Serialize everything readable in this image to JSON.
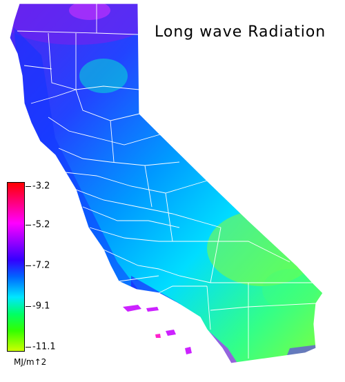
{
  "title": "Long wave Radiation",
  "legend": {
    "ticks": [
      "-3.2",
      "-5.2",
      "-7.2",
      "-9.1",
      "-11.1"
    ],
    "unit": "MJ/m↑2",
    "colors": [
      "#ff0000",
      "#ff00ff",
      "#3300ff",
      "#0066ff",
      "#00e6ff",
      "#00ff66",
      "#33ff00",
      "#ccff00"
    ]
  },
  "map": {
    "region": "California",
    "colors": {
      "north_coast": "#4422ee",
      "coast": "#0044ff",
      "central": "#00ccff",
      "east": "#33ff66",
      "desert": "#88ff22",
      "south_coast": "#cc22ff"
    }
  }
}
